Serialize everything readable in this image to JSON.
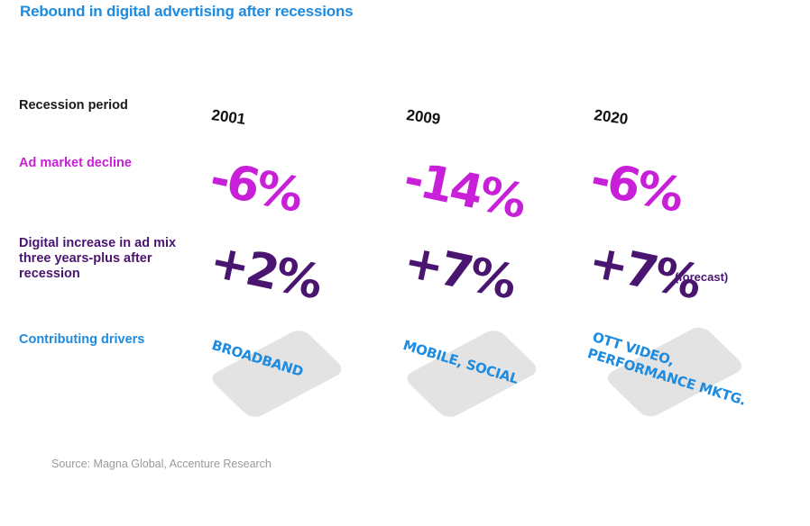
{
  "title": "Rebound in digital advertising after recessions",
  "labels": {
    "period": "Recession period",
    "decline": "Ad market decline",
    "digital": "Digital increase in ad mix three years-plus after recession",
    "drivers": "Contributing drivers"
  },
  "columns": [
    {
      "year": "2001",
      "decline": "-6%",
      "increase": "+2%",
      "driver_lines": [
        "BROADBAND"
      ]
    },
    {
      "year": "2009",
      "decline": "-14%",
      "increase": "+7%",
      "driver_lines": [
        "MOBILE, SOCIAL"
      ]
    },
    {
      "year": "2020",
      "decline": "-6%",
      "increase": "+7%",
      "increase_note": "(forecast)",
      "driver_lines": [
        "OTT VIDEO,",
        "PERFORMANCE MKTG."
      ]
    }
  ],
  "source": "Source: Magna Global, Accenture Research",
  "colors": {
    "blue": "#1d8be0",
    "magenta": "#c81fd8",
    "purple": "#4a1570",
    "card": "#e3e3e3"
  }
}
